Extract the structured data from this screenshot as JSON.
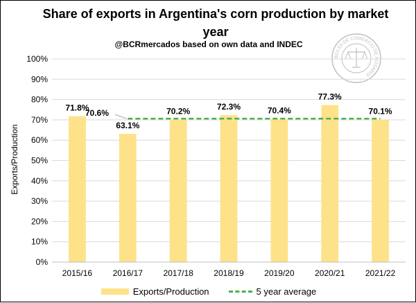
{
  "header": {
    "title": "Share of exports in Argentina's corn production by market year",
    "subtitle": "@BCRmercados based on own data and INDEC"
  },
  "legend": {
    "bar_label": "Exports/Production",
    "line_label": "5 year average"
  },
  "colors": {
    "bar": "#fde28a",
    "average_line": "#4caf50",
    "grid": "#d9d9d9",
    "seal": "#bfbfbf"
  },
  "seal": {
    "icon": "scales-of-justice-icon",
    "text": "BOLSA DE COMERCIO DE ROSARIO"
  },
  "chart_data": {
    "type": "bar",
    "title": "Share of exports in Argentina's corn production by market year",
    "subtitle": "@BCRmercados based on own data and INDEC",
    "xlabel": "",
    "ylabel": "Exports/Production",
    "categories": [
      "2015/16",
      "2016/17",
      "2017/18",
      "2018/19",
      "2019/20",
      "2020/21",
      "2021/22"
    ],
    "series": [
      {
        "name": "Exports/Production",
        "values": [
          71.8,
          63.1,
          70.2,
          72.3,
          70.4,
          77.3,
          70.1
        ],
        "data_labels": [
          "71.8%",
          "63.1%",
          "70.2%",
          "72.3%",
          "70.4%",
          "77.3%",
          "70.1%"
        ]
      },
      {
        "name": "5 year average",
        "type": "line",
        "style": "dashed",
        "values": [
          null,
          70.6,
          70.6,
          70.6,
          70.6,
          70.6,
          70.6
        ],
        "data_label": "70.6%"
      }
    ],
    "ylim": [
      0,
      100
    ],
    "yticks": [
      "0%",
      "10%",
      "20%",
      "30%",
      "40%",
      "50%",
      "60%",
      "70%",
      "80%",
      "90%",
      "100%"
    ],
    "grid": "horizontal",
    "legend_position": "bottom"
  }
}
